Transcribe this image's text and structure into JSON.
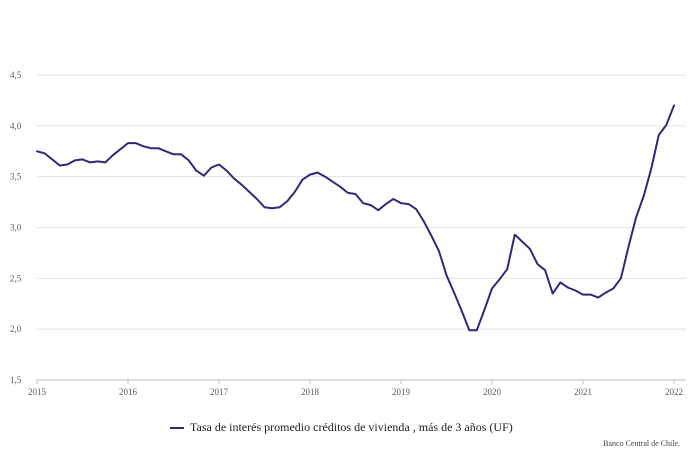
{
  "chart_data": {
    "type": "line",
    "x_unit": "month",
    "x": [
      "2015-01",
      "2015-02",
      "2015-03",
      "2015-04",
      "2015-05",
      "2015-06",
      "2015-07",
      "2015-08",
      "2015-09",
      "2015-10",
      "2015-11",
      "2015-12",
      "2016-01",
      "2016-02",
      "2016-03",
      "2016-04",
      "2016-05",
      "2016-06",
      "2016-07",
      "2016-08",
      "2016-09",
      "2016-10",
      "2016-11",
      "2016-12",
      "2017-01",
      "2017-02",
      "2017-03",
      "2017-04",
      "2017-05",
      "2017-06",
      "2017-07",
      "2017-08",
      "2017-09",
      "2017-10",
      "2017-11",
      "2017-12",
      "2018-01",
      "2018-02",
      "2018-03",
      "2018-04",
      "2018-05",
      "2018-06",
      "2018-07",
      "2018-08",
      "2018-09",
      "2018-10",
      "2018-11",
      "2018-12",
      "2019-01",
      "2019-02",
      "2019-03",
      "2019-04",
      "2019-05",
      "2019-06",
      "2019-07",
      "2019-08",
      "2019-09",
      "2019-10",
      "2019-11",
      "2019-12",
      "2020-01",
      "2020-02",
      "2020-03",
      "2020-04",
      "2020-05",
      "2020-06",
      "2020-07",
      "2020-08",
      "2020-09",
      "2020-10",
      "2020-11",
      "2020-12",
      "2021-01",
      "2021-02",
      "2021-03",
      "2021-04",
      "2021-05",
      "2021-06",
      "2021-07",
      "2021-08",
      "2021-09",
      "2021-10",
      "2021-11",
      "2021-12",
      "2022-01"
    ],
    "series": [
      {
        "name": "Tasa de interés promedio créditos de vivienda , más de 3 años (UF)",
        "color": "#2e2a7a",
        "values": [
          3.75,
          3.73,
          3.67,
          3.61,
          3.62,
          3.66,
          3.67,
          3.64,
          3.65,
          3.64,
          3.71,
          3.77,
          3.83,
          3.83,
          3.8,
          3.78,
          3.78,
          3.75,
          3.72,
          3.72,
          3.66,
          3.56,
          3.51,
          3.59,
          3.62,
          3.56,
          3.48,
          3.42,
          3.35,
          3.28,
          3.2,
          3.19,
          3.2,
          3.26,
          3.35,
          3.47,
          3.52,
          3.54,
          3.5,
          3.45,
          3.4,
          3.34,
          3.33,
          3.24,
          3.22,
          3.17,
          3.23,
          3.28,
          3.24,
          3.23,
          3.18,
          3.06,
          2.92,
          2.77,
          2.53,
          2.36,
          2.18,
          1.99,
          1.99,
          2.19,
          2.4,
          2.49,
          2.59,
          2.93,
          2.86,
          2.79,
          2.64,
          2.58,
          2.35,
          2.46,
          2.41,
          2.38,
          2.34,
          2.34,
          2.31,
          2.36,
          2.4,
          2.5,
          2.81,
          3.1,
          3.31,
          3.58,
          3.91,
          4.01,
          4.2
        ]
      }
    ],
    "x_tick_labels": [
      "2015",
      "2016",
      "2017",
      "2018",
      "2019",
      "2020",
      "2021",
      "2022"
    ],
    "y_tick_labels": [
      "1,5",
      "2,0",
      "2,5",
      "3,0",
      "3,5",
      "4,0",
      "4,5"
    ],
    "y_ticks": [
      1.5,
      2.0,
      2.5,
      3.0,
      3.5,
      4.0,
      4.5
    ],
    "ylim": [
      1.5,
      4.5
    ],
    "grid": "horizontal",
    "legend_placement": "bottom"
  },
  "legend_label": "Tasa de interés promedio créditos de vivienda , más de 3 años (UF)",
  "source_note": "Banco Central de Chile."
}
